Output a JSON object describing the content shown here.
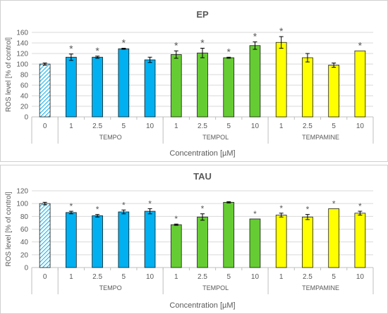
{
  "chart_data": [
    {
      "type": "bar",
      "title": "EP",
      "xlabel": "Concentration [µM]",
      "ylabel": "ROS level [% of control]",
      "ylim": [
        0,
        160
      ],
      "yticks": [
        0,
        20,
        40,
        60,
        80,
        100,
        120,
        140,
        160
      ],
      "grid": true,
      "groups": [
        {
          "label": "",
          "categories": [
            "0"
          ],
          "values": [
            100
          ],
          "errors": [
            2
          ],
          "color": "control-hatched",
          "sig": [
            false
          ]
        },
        {
          "label": "TEMPO",
          "categories": [
            "1",
            "2.5",
            "5",
            "10"
          ],
          "values": [
            113,
            113,
            129,
            108
          ],
          "errors": [
            6,
            2,
            1,
            5
          ],
          "color": "#00B0F0",
          "sig": [
            true,
            true,
            true,
            false
          ]
        },
        {
          "label": "TEMPOL",
          "categories": [
            "1",
            "2.5",
            "5",
            "10"
          ],
          "values": [
            118,
            121,
            112,
            135
          ],
          "errors": [
            7,
            9,
            1,
            7
          ],
          "color": "#66CC33",
          "sig": [
            true,
            true,
            true,
            true
          ]
        },
        {
          "label": "TEMPAMINE",
          "categories": [
            "1",
            "2.5",
            "5",
            "10"
          ],
          "values": [
            141,
            112,
            98,
            125
          ],
          "errors": [
            11,
            8,
            4,
            0
          ],
          "color": "#FFFF00",
          "sig": [
            true,
            false,
            false,
            true
          ]
        }
      ]
    },
    {
      "type": "bar",
      "title": "TAU",
      "xlabel": "Concentration [µM]",
      "ylabel": "ROS level [% of control]",
      "ylim": [
        0,
        120
      ],
      "yticks": [
        0,
        20,
        40,
        60,
        80,
        100,
        120
      ],
      "grid": true,
      "groups": [
        {
          "label": "",
          "categories": [
            "0"
          ],
          "values": [
            100
          ],
          "errors": [
            2
          ],
          "color": "control-hatched",
          "sig": [
            false
          ]
        },
        {
          "label": "TEMPO",
          "categories": [
            "1",
            "2.5",
            "5",
            "10"
          ],
          "values": [
            86,
            81,
            87,
            88
          ],
          "errors": [
            2,
            2,
            3,
            4
          ],
          "color": "#00B0F0",
          "sig": [
            true,
            true,
            true,
            true
          ]
        },
        {
          "label": "TEMPOL",
          "categories": [
            "1",
            "2.5",
            "5",
            "10"
          ],
          "values": [
            67,
            79,
            102,
            76
          ],
          "errors": [
            1,
            5,
            1,
            0
          ],
          "color": "#66CC33",
          "sig": [
            true,
            true,
            false,
            true
          ]
        },
        {
          "label": "TEMPAMINE",
          "categories": [
            "1",
            "2.5",
            "5",
            "10"
          ],
          "values": [
            82,
            79,
            92,
            85
          ],
          "errors": [
            3,
            4,
            0,
            3
          ],
          "color": "#FFFF00",
          "sig": [
            true,
            true,
            true,
            true
          ]
        }
      ]
    }
  ],
  "sig_marker": "*",
  "colors": {
    "gridline": "#d9d9d9",
    "axis": "#bfbfbf",
    "bar_outline": "#1a1a1a",
    "hatch": "#00B0F0"
  }
}
